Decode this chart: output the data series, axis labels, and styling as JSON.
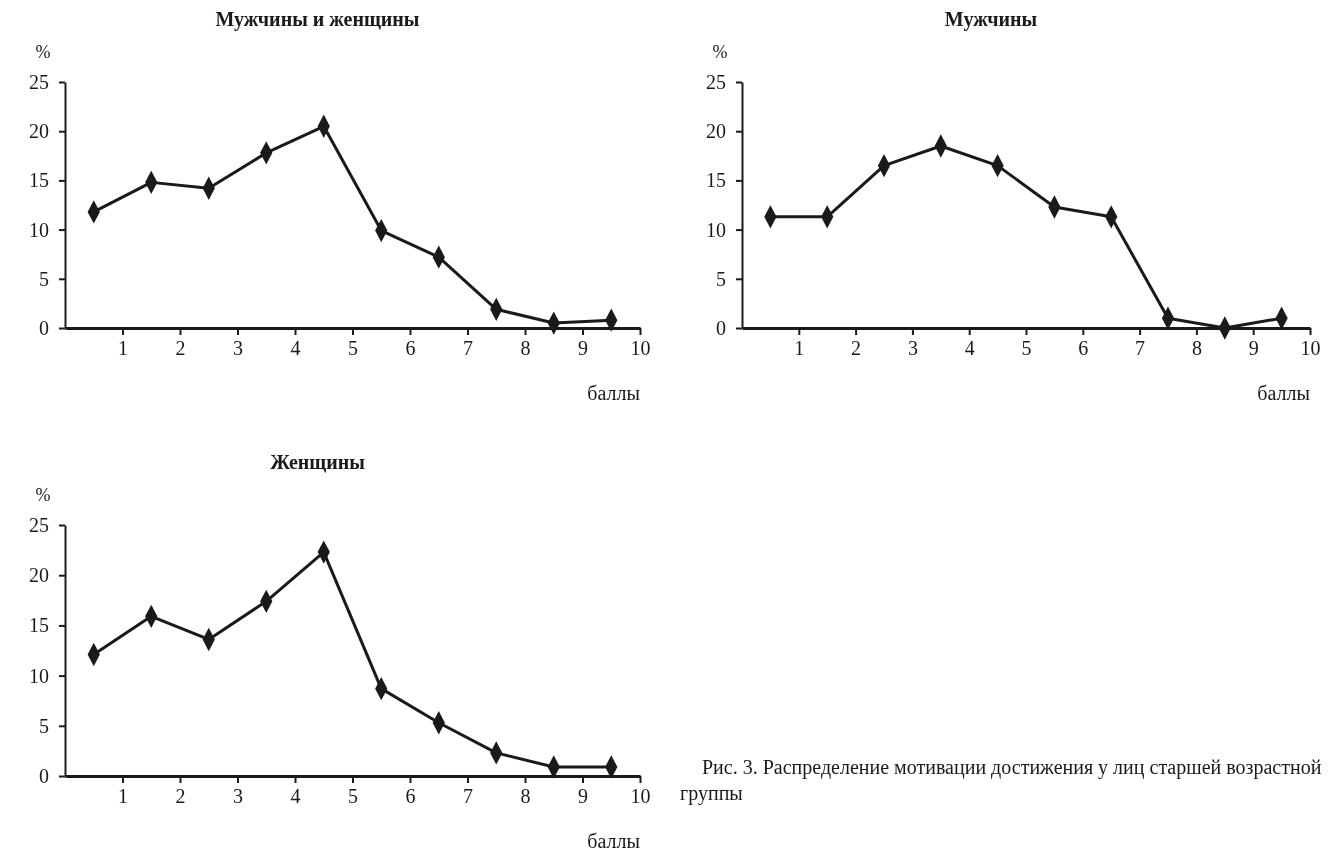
{
  "chart_data": [
    {
      "type": "line",
      "title": "Мужчины и женщины",
      "ylabel": "%",
      "xlabel": "баллы",
      "x": [
        0.5,
        1.5,
        2.5,
        3.5,
        4.5,
        5.5,
        6.5,
        7.5,
        8.5,
        9.5
      ],
      "series": [
        {
          "color": "#1a1a1a",
          "values": [
            11.8,
            14.8,
            14.2,
            17.8,
            20.5,
            9.9,
            7.2,
            1.9,
            0.5,
            0.8
          ]
        }
      ],
      "xlim": [
        0,
        10
      ],
      "xticks": [
        1,
        2,
        3,
        4,
        5,
        6,
        7,
        8,
        9,
        10
      ],
      "ylim": [
        0,
        25
      ],
      "yticks": [
        0,
        5,
        10,
        15,
        20,
        25
      ],
      "marker": "diamond",
      "line_style": "solid",
      "grid": false
    },
    {
      "type": "line",
      "title": "Мужчины",
      "ylabel": "%",
      "xlabel": "баллы",
      "x": [
        0.5,
        1.5,
        2.5,
        3.5,
        4.5,
        5.5,
        6.5,
        7.5,
        8.5,
        9.5
      ],
      "series": [
        {
          "color": "#1a1a1a",
          "values": [
            11.3,
            11.3,
            16.5,
            18.5,
            16.5,
            12.3,
            11.3,
            1.0,
            0,
            1.0
          ]
        }
      ],
      "xlim": [
        0,
        10
      ],
      "xticks": [
        1,
        2,
        3,
        4,
        5,
        6,
        7,
        8,
        9,
        10
      ],
      "ylim": [
        0,
        25
      ],
      "yticks": [
        0,
        5,
        10,
        15,
        20,
        25
      ],
      "marker": "diamond",
      "line_style": "solid",
      "grid": false
    },
    {
      "type": "line",
      "title": "Женщины",
      "ylabel": "%",
      "xlabel": "баллы",
      "x": [
        0.5,
        1.5,
        2.5,
        3.5,
        4.5,
        5.5,
        6.5,
        7.5,
        8.5,
        9.5
      ],
      "series": [
        {
          "color": "#1a1a1a",
          "values": [
            12.1,
            15.9,
            13.6,
            17.4,
            22.3,
            8.7,
            5.3,
            2.3,
            0.9,
            0.9
          ]
        }
      ],
      "xlim": [
        0,
        10
      ],
      "xticks": [
        1,
        2,
        3,
        4,
        5,
        6,
        7,
        8,
        9,
        10
      ],
      "ylim": [
        0,
        25
      ],
      "yticks": [
        0,
        5,
        10,
        15,
        20,
        25
      ],
      "marker": "diamond",
      "line_style": "solid",
      "grid": false,
      "annotations": [
        "Рис. 3. Распределение мотивации достижения у лиц старшей возрастной группы"
      ]
    }
  ]
}
